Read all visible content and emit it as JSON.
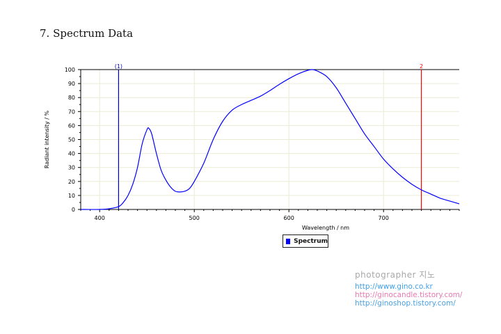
{
  "heading": "7. Spectrum Data",
  "chart_data": {
    "type": "line",
    "title": "",
    "xlabel": "Wavelength / nm",
    "ylabel": "Radiant intensity / %",
    "xlim": [
      380,
      780
    ],
    "ylim": [
      0,
      100
    ],
    "x_ticks": [
      400,
      500,
      600,
      700
    ],
    "y_ticks": [
      0,
      10,
      20,
      30,
      40,
      50,
      60,
      70,
      80,
      90,
      100
    ],
    "grid": true,
    "legend_position": "bottom-center",
    "series": [
      {
        "name": "Spectrum",
        "color": "#0000ff",
        "x": [
          380,
          400,
          410,
          420,
          425,
          430,
          435,
          440,
          445,
          450,
          452,
          455,
          460,
          465,
          470,
          475,
          480,
          485,
          490,
          495,
          500,
          510,
          520,
          530,
          540,
          550,
          560,
          570,
          580,
          590,
          600,
          610,
          620,
          625,
          630,
          640,
          650,
          660,
          670,
          680,
          690,
          700,
          710,
          720,
          730,
          740,
          750,
          760,
          770,
          780
        ],
        "y": [
          0,
          0,
          0.5,
          2,
          5,
          10,
          18,
          30,
          47,
          57,
          58,
          54,
          40,
          28,
          21,
          16,
          13,
          12.5,
          13,
          15,
          20,
          33,
          50,
          63,
          71,
          75,
          78,
          81,
          85,
          89.5,
          93.5,
          97,
          99.5,
          100,
          99,
          95,
          87,
          76,
          65,
          54,
          45,
          36,
          29,
          23,
          18,
          14,
          11,
          8,
          6,
          4
        ]
      }
    ],
    "markers": [
      {
        "label": "(1)",
        "x": 420,
        "color": "#0000cc"
      },
      {
        "label": "2",
        "x": 740,
        "color": "#ff0000"
      }
    ]
  },
  "watermark": {
    "title": "photographer 지노",
    "links": [
      {
        "text": "http://www.gino.co.kr",
        "color": "#40a0e8"
      },
      {
        "text": "http://ginocandle.tistory.com/",
        "color": "#e878b0"
      },
      {
        "text": "http://ginoshop.tistory.com/",
        "color": "#4aa0e0"
      }
    ]
  }
}
